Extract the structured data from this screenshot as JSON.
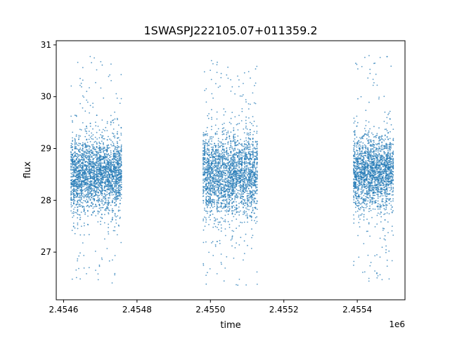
{
  "chart_data": {
    "type": "scatter",
    "title": "1SWASPJ222105.07+011359.2",
    "xlabel": "time",
    "ylabel": "flux",
    "x_offset_label": "1e6",
    "xlim": [
      2.45458,
      2.45553
    ],
    "ylim": [
      26.08,
      31.08
    ],
    "xticks": [
      2.4546,
      2.4548,
      2.455,
      2.4552,
      2.4554
    ],
    "xtick_labels": [
      "2.4546",
      "2.4548",
      "2.4550",
      "2.4552",
      "2.4554"
    ],
    "yticks": [
      27,
      28,
      29,
      30,
      31
    ],
    "ytick_labels": [
      "27",
      "28",
      "29",
      "30",
      "31"
    ],
    "grid": false,
    "color": "#1f77b4",
    "marker_size": 0.9,
    "seasons": [
      {
        "x_range": [
          2.45462,
          2.45476
        ],
        "flux_center": 28.5,
        "flux_spread": 0.35,
        "outlier_range": [
          26.4,
          30.8
        ],
        "points": 2600
      },
      {
        "x_range": [
          2.45498,
          2.45513
        ],
        "flux_center": 28.5,
        "flux_spread": 0.38,
        "outlier_range": [
          26.3,
          30.7
        ],
        "points": 2600
      },
      {
        "x_range": [
          2.45539,
          2.4555
        ],
        "flux_center": 28.55,
        "flux_spread": 0.35,
        "outlier_range": [
          26.4,
          30.8
        ],
        "points": 2000
      }
    ]
  }
}
